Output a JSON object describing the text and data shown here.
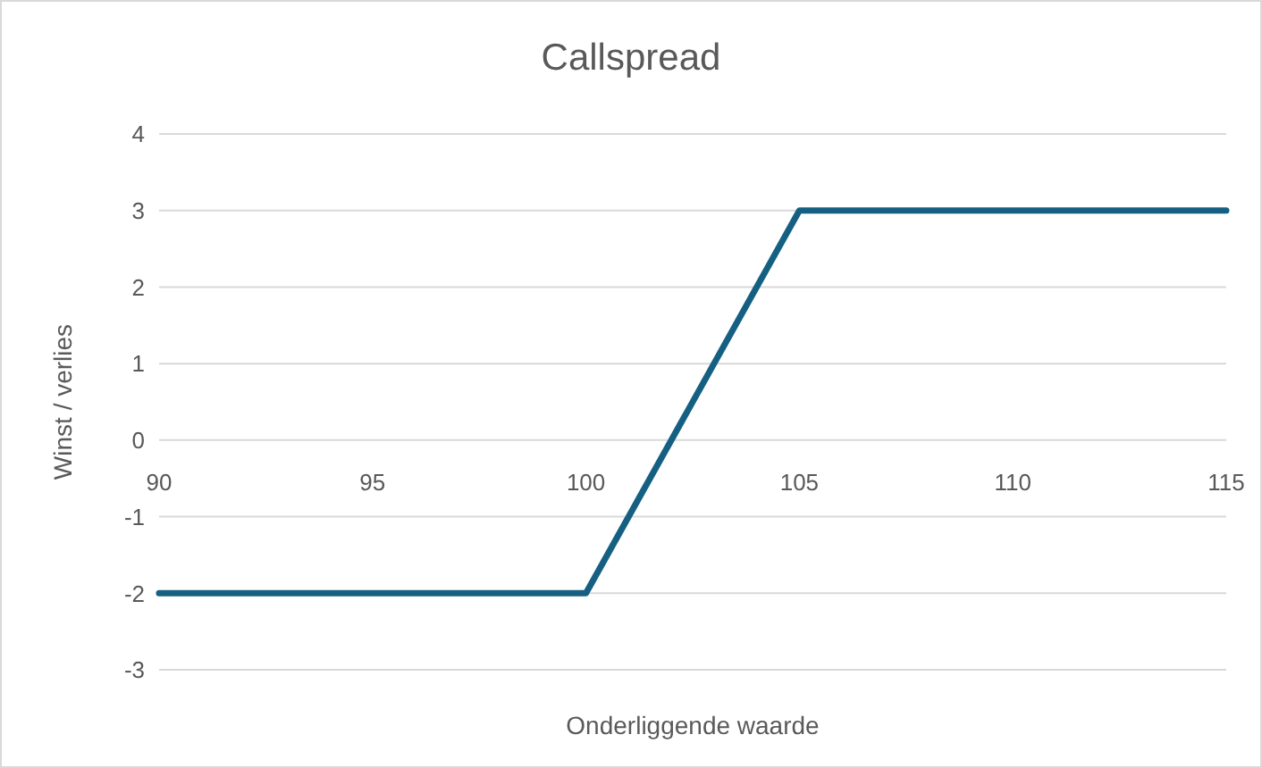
{
  "chart_data": {
    "type": "line",
    "title": "Callspread",
    "xlabel": "Onderliggende waarde",
    "ylabel": "Winst / verlies",
    "categories": [
      "90",
      "95",
      "100",
      "105",
      "110",
      "115"
    ],
    "series": [
      {
        "color": "#156082",
        "values": [
          -2,
          -2,
          -2,
          3,
          3,
          3
        ]
      }
    ],
    "ylim": [
      -3,
      4
    ],
    "yticks": [
      -3,
      -2,
      -1,
      0,
      1,
      2,
      3,
      4
    ],
    "grid": "y",
    "marker": "none",
    "line_style": "solid"
  }
}
